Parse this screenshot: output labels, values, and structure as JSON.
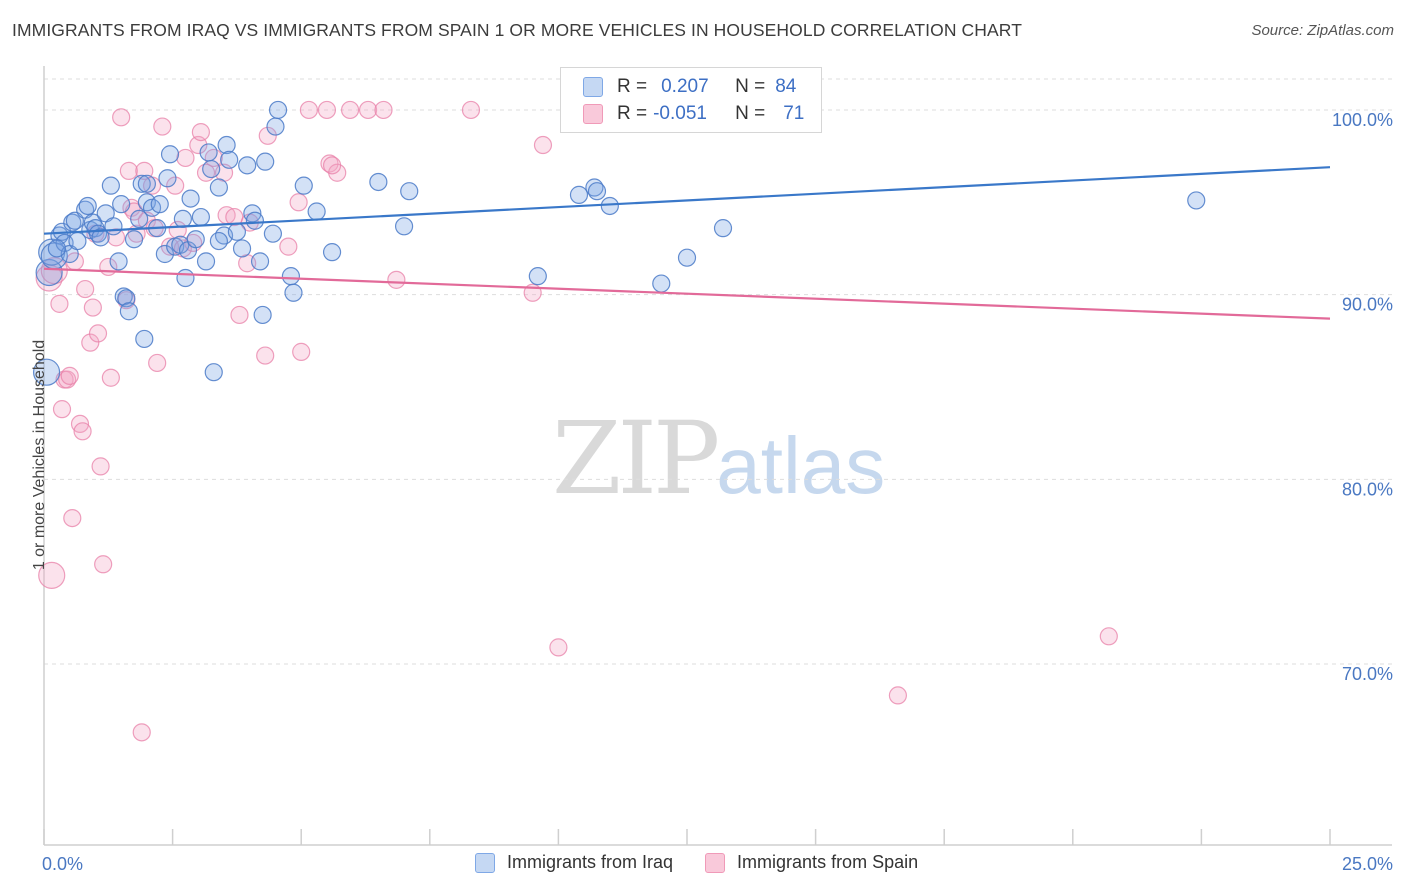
{
  "header": {
    "title": "IMMIGRANTS FROM IRAQ VS IMMIGRANTS FROM SPAIN 1 OR MORE VEHICLES IN HOUSEHOLD CORRELATION CHART",
    "source": "Source: ZipAtlas.com"
  },
  "watermark": {
    "zip": "ZIP",
    "atlas": "atlas"
  },
  "legend": {
    "rows": [
      {
        "r_label": "R =",
        "r_value": "0.207",
        "n_label": "N =",
        "n_value": "84",
        "color": "#7fa8e6"
      },
      {
        "r_label": "R =",
        "r_value": "-0.051",
        "n_label": "N =",
        "n_value": "71",
        "color": "#f09ab8"
      }
    ]
  },
  "chart_data": {
    "type": "scatter",
    "title": "IMMIGRANTS FROM IRAQ VS IMMIGRANTS FROM SPAIN 1 OR MORE VEHICLES IN HOUSEHOLD CORRELATION CHART",
    "xlabel": "",
    "ylabel": "1 or more Vehicles in Household",
    "xlim": [
      0,
      25
    ],
    "ylim": [
      60.2,
      102
    ],
    "x_tick_labels": [
      "0.0%",
      "25.0%"
    ],
    "y_ticks": [
      70,
      80,
      90,
      100
    ],
    "y_tick_labels": [
      "70.0%",
      "80.0%",
      "90.0%",
      "100.0%"
    ],
    "grid": true,
    "colors": {
      "iraq": "#5b8ed8",
      "spain": "#ee8fb1",
      "iraq_line": "#3a78c9",
      "spain_line": "#e26a99"
    },
    "series": [
      {
        "name": "Immigrants from Iraq",
        "trend": {
          "x": [
            0,
            25
          ],
          "y": [
            93.3,
            96.9
          ]
        },
        "points": [
          [
            0.1,
            91.2
          ],
          [
            0.15,
            92.3
          ],
          [
            0.2,
            92.1
          ],
          [
            0.3,
            93.2
          ],
          [
            0.35,
            93.4
          ],
          [
            0.4,
            92.8
          ],
          [
            0.5,
            92.2
          ],
          [
            0.55,
            93.9
          ],
          [
            0.6,
            94.0
          ],
          [
            0.65,
            92.9
          ],
          [
            0.8,
            94.6
          ],
          [
            0.85,
            94.8
          ],
          [
            0.9,
            93.5
          ],
          [
            0.95,
            93.9
          ],
          [
            1.0,
            93.6
          ],
          [
            1.05,
            93.3
          ],
          [
            1.2,
            94.4
          ],
          [
            1.3,
            95.9
          ],
          [
            1.35,
            93.7
          ],
          [
            1.45,
            91.8
          ],
          [
            1.5,
            94.9
          ],
          [
            1.55,
            89.9
          ],
          [
            1.6,
            89.8
          ],
          [
            1.65,
            89.1
          ],
          [
            1.75,
            93.0
          ],
          [
            1.85,
            94.1
          ],
          [
            1.9,
            96.0
          ],
          [
            1.95,
            87.6
          ],
          [
            2.0,
            95.0
          ],
          [
            2.1,
            94.7
          ],
          [
            2.2,
            93.6
          ],
          [
            2.25,
            94.9
          ],
          [
            2.35,
            92.2
          ],
          [
            2.4,
            96.3
          ],
          [
            2.45,
            97.6
          ],
          [
            2.55,
            92.6
          ],
          [
            2.65,
            92.7
          ],
          [
            2.7,
            94.1
          ],
          [
            2.75,
            90.9
          ],
          [
            2.8,
            92.4
          ],
          [
            2.85,
            95.2
          ],
          [
            2.95,
            93.0
          ],
          [
            3.05,
            94.2
          ],
          [
            3.15,
            91.8
          ],
          [
            3.2,
            97.7
          ],
          [
            3.25,
            96.8
          ],
          [
            3.3,
            85.8
          ],
          [
            3.4,
            95.8
          ],
          [
            3.5,
            93.2
          ],
          [
            3.55,
            98.1
          ],
          [
            3.6,
            97.3
          ],
          [
            3.75,
            93.4
          ],
          [
            3.85,
            92.5
          ],
          [
            3.95,
            97.0
          ],
          [
            4.05,
            94.4
          ],
          [
            4.1,
            94.0
          ],
          [
            4.2,
            91.8
          ],
          [
            4.25,
            88.9
          ],
          [
            4.3,
            97.2
          ],
          [
            4.45,
            93.3
          ],
          [
            4.5,
            99.1
          ],
          [
            4.55,
            100.0
          ],
          [
            4.8,
            91.0
          ],
          [
            4.85,
            90.1
          ],
          [
            5.05,
            95.9
          ],
          [
            5.3,
            94.5
          ],
          [
            5.6,
            92.3
          ],
          [
            6.5,
            96.1
          ],
          [
            7.0,
            93.7
          ],
          [
            7.1,
            95.6
          ],
          [
            9.6,
            91.0
          ],
          [
            10.4,
            95.4
          ],
          [
            10.7,
            95.8
          ],
          [
            10.75,
            95.6
          ],
          [
            11.0,
            94.8
          ],
          [
            12.0,
            90.6
          ],
          [
            12.5,
            92.0
          ],
          [
            13.2,
            93.6
          ],
          [
            22.4,
            95.1
          ],
          [
            0.05,
            85.8
          ],
          [
            0.25,
            92.5
          ],
          [
            1.1,
            93.1
          ],
          [
            2.0,
            96.0
          ],
          [
            3.4,
            92.9
          ]
        ]
      },
      {
        "name": "Immigrants from Spain",
        "trend": {
          "x": [
            0,
            25
          ],
          "y": [
            91.4,
            88.7
          ]
        },
        "points": [
          [
            0.1,
            90.9
          ],
          [
            0.2,
            91.3
          ],
          [
            0.3,
            89.5
          ],
          [
            0.35,
            83.8
          ],
          [
            0.4,
            85.4
          ],
          [
            0.45,
            85.4
          ],
          [
            0.5,
            85.6
          ],
          [
            0.55,
            77.9
          ],
          [
            0.6,
            91.8
          ],
          [
            0.7,
            83.0
          ],
          [
            0.75,
            82.6
          ],
          [
            0.8,
            90.3
          ],
          [
            0.9,
            87.4
          ],
          [
            0.95,
            89.3
          ],
          [
            1.0,
            93.3
          ],
          [
            1.05,
            87.9
          ],
          [
            1.1,
            80.7
          ],
          [
            1.15,
            75.4
          ],
          [
            1.25,
            91.5
          ],
          [
            1.3,
            85.5
          ],
          [
            1.4,
            93.1
          ],
          [
            1.5,
            99.6
          ],
          [
            1.6,
            89.7
          ],
          [
            1.65,
            96.7
          ],
          [
            1.7,
            94.7
          ],
          [
            1.75,
            94.5
          ],
          [
            1.8,
            93.3
          ],
          [
            1.9,
            66.3
          ],
          [
            1.95,
            96.7
          ],
          [
            2.0,
            94.0
          ],
          [
            2.1,
            95.9
          ],
          [
            2.15,
            93.6
          ],
          [
            2.2,
            86.3
          ],
          [
            2.3,
            99.1
          ],
          [
            2.45,
            92.6
          ],
          [
            2.55,
            95.9
          ],
          [
            2.6,
            93.5
          ],
          [
            2.7,
            92.5
          ],
          [
            2.75,
            97.4
          ],
          [
            2.9,
            92.8
          ],
          [
            3.0,
            98.1
          ],
          [
            3.05,
            98.8
          ],
          [
            3.15,
            96.6
          ],
          [
            3.3,
            97.4
          ],
          [
            3.55,
            94.3
          ],
          [
            3.7,
            94.2
          ],
          [
            3.8,
            88.9
          ],
          [
            3.95,
            91.7
          ],
          [
            4.0,
            93.9
          ],
          [
            4.3,
            86.7
          ],
          [
            4.35,
            98.6
          ],
          [
            4.75,
            92.6
          ],
          [
            4.95,
            95.0
          ],
          [
            5.0,
            86.9
          ],
          [
            5.15,
            100.0
          ],
          [
            5.5,
            100.0
          ],
          [
            5.55,
            97.1
          ],
          [
            5.7,
            96.6
          ],
          [
            5.95,
            100.0
          ],
          [
            6.3,
            100.0
          ],
          [
            6.6,
            100.0
          ],
          [
            6.85,
            90.8
          ],
          [
            8.3,
            100.0
          ],
          [
            9.5,
            90.1
          ],
          [
            9.7,
            98.1
          ],
          [
            10.0,
            70.9
          ],
          [
            16.6,
            68.3
          ],
          [
            20.7,
            71.5
          ],
          [
            0.15,
            74.8
          ],
          [
            5.6,
            97.0
          ],
          [
            3.5,
            96.6
          ]
        ]
      }
    ]
  },
  "bottom_legend": {
    "items": [
      {
        "label": "Immigrants from Iraq",
        "color": "#7fa8e6"
      },
      {
        "label": "Immigrants from Spain",
        "color": "#f09ab8"
      }
    ]
  }
}
